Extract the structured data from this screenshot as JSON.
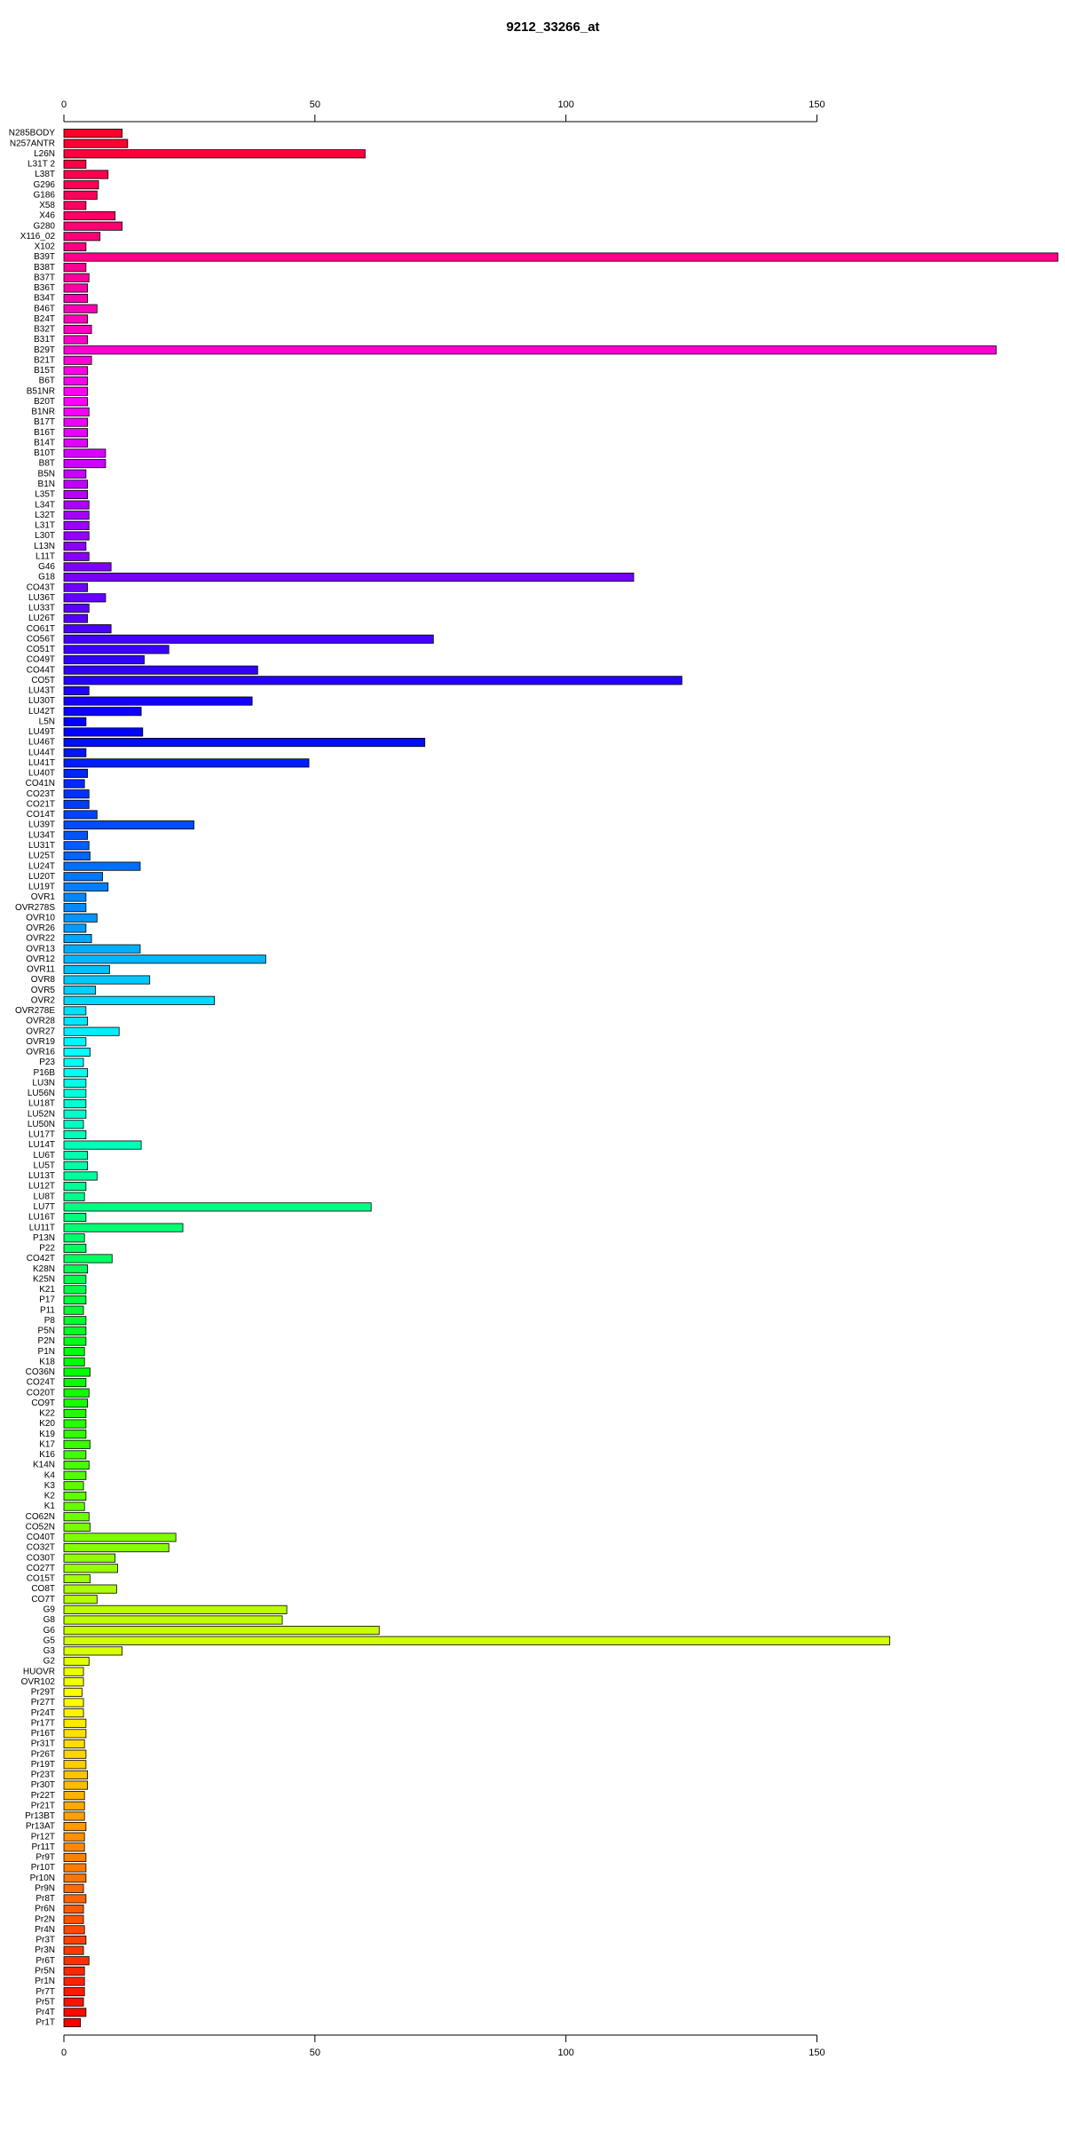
{
  "chart_data": {
    "type": "bar",
    "orientation": "horizontal",
    "title": "9212_33266_at",
    "categories": [
      "N285BODY",
      "N257ANTR",
      "L26N",
      "L31T 2",
      "L38T",
      "G296",
      "G186",
      "X58",
      "X46",
      "G280",
      "X116_02",
      "X102",
      "B39T",
      "B38T",
      "B37T",
      "B36T",
      "B34T",
      "B46T",
      "B24T",
      "B32T",
      "B31T",
      "B29T",
      "B21T",
      "B15T",
      "B6T",
      "B51NR",
      "B20T",
      "B1NR",
      "B17T",
      "B16T",
      "B14T",
      "B10T",
      "B8T",
      "B5N",
      "B1N",
      "L35T",
      "L34T",
      "L32T",
      "L31T",
      "L30T",
      "L13N",
      "L11T",
      "G46",
      "G18",
      "CO43T",
      "LU36T",
      "LU33T",
      "LU26T",
      "CO61T",
      "CO56T",
      "CO51T",
      "CO49T",
      "CO44T",
      "CO5T",
      "LU43T",
      "LU30T",
      "LU42T",
      "L5N",
      "LU49T",
      "LU46T",
      "LU44T",
      "LU41T",
      "LU40T",
      "CO41N",
      "CO23T",
      "CO21T",
      "CO14T",
      "LU39T",
      "LU34T",
      "LU31T",
      "LU25T",
      "LU24T",
      "LU20T",
      "LU19T",
      "OVR1",
      "OVR278S",
      "OVR10",
      "OVR26",
      "OVR22",
      "OVR13",
      "OVR12",
      "OVR11",
      "OVR8",
      "OVR5",
      "OVR2",
      "OVR278E",
      "OVR28",
      "OVR27",
      "OVR19",
      "OVR16",
      "P23",
      "P16B",
      "LU3N",
      "LU56N",
      "LU18T",
      "LU52N",
      "LU50N",
      "LU17T",
      "LU14T",
      "LU6T",
      "LU5T",
      "LU13T",
      "LU12T",
      "LU8T",
      "LU7T",
      "LU16T",
      "LU11T",
      "P13N",
      "P22",
      "CO42T",
      "K28N",
      "K25N",
      "K21",
      "P17",
      "P11",
      "P8",
      "P5N",
      "P2N",
      "P1N",
      "K18",
      "CO36N",
      "CO24T",
      "CO20T",
      "CO9T",
      "K22",
      "K20",
      "K19",
      "K17",
      "K16",
      "K14N",
      "K4",
      "K3",
      "K2",
      "K1",
      "CO62N",
      "CO52N",
      "CO40T",
      "CO32T",
      "CO30T",
      "CO27T",
      "CO15T",
      "CO8T",
      "CO7T",
      "G9",
      "G8",
      "G6",
      "G5",
      "G3",
      "G2",
      "HUOVR",
      "OVR102",
      "Pr29T",
      "Pr27T",
      "Pr24T",
      "Pr17T",
      "Pr16T",
      "Pr31T",
      "Pr26T",
      "Pr19T",
      "Pr23T",
      "Pr30T",
      "Pr22T",
      "Pr21T",
      "Pr13BT",
      "Pr13AT",
      "Pr12T",
      "Pr11T",
      "Pr9T",
      "Pr10T",
      "Pr10N",
      "Pr9N",
      "Pr8T",
      "Pr6N",
      "Pr2N",
      "Pr4N",
      "Pr3T",
      "Pr3N",
      "Pr6T",
      "Pr5N",
      "Pr1N",
      "Pr7T",
      "Pr5T",
      "Pr4T",
      "Pr1T"
    ],
    "values": [
      11.6,
      12.7,
      60,
      4.4,
      8.8,
      6.9,
      6.6,
      4.4,
      10.2,
      11.6,
      7.2,
      4.4,
      198,
      4.4,
      5,
      4.7,
      4.7,
      6.6,
      4.7,
      5.5,
      4.7,
      185.7,
      5.5,
      4.7,
      4.7,
      4.7,
      4.7,
      5,
      4.7,
      4.7,
      4.7,
      8.3,
      8.3,
      4.4,
      4.7,
      4.7,
      5,
      5,
      5,
      5,
      4.4,
      5,
      9.4,
      113.5,
      4.7,
      8.3,
      5,
      4.7,
      9.4,
      73.6,
      20.9,
      16,
      38.6,
      123.1,
      5,
      37.5,
      15.4,
      4.4,
      15.7,
      71.9,
      4.4,
      48.8,
      4.7,
      4.1,
      5,
      5,
      6.6,
      25.9,
      4.7,
      5,
      5.2,
      15.2,
      7.7,
      8.8,
      4.4,
      4.4,
      6.6,
      4.4,
      5.5,
      15.2,
      40.2,
      9.1,
      17.1,
      6.3,
      30,
      4.4,
      4.7,
      11,
      4.4,
      5.2,
      3.9,
      4.7,
      4.4,
      4.4,
      4.4,
      4.4,
      3.9,
      4.4,
      15.4,
      4.7,
      4.7,
      6.6,
      4.4,
      4.1,
      61.2,
      4.4,
      23.7,
      4.1,
      4.4,
      9.6,
      4.7,
      4.4,
      4.4,
      4.4,
      3.9,
      4.4,
      4.4,
      4.4,
      4.1,
      4.1,
      5.2,
      4.4,
      5,
      4.7,
      4.4,
      4.4,
      4.4,
      5.2,
      4.4,
      5,
      4.4,
      3.9,
      4.4,
      4.1,
      5,
      5.2,
      22.3,
      20.9,
      10.2,
      10.7,
      5.2,
      10.5,
      6.6,
      44.4,
      43.5,
      62.8,
      164.5,
      11.6,
      5,
      3.9,
      3.9,
      3.6,
      3.9,
      3.9,
      4.4,
      4.4,
      4.1,
      4.4,
      4.4,
      4.7,
      4.7,
      4.1,
      4.1,
      4.1,
      4.4,
      4.1,
      4.1,
      4.4,
      4.4,
      4.4,
      3.9,
      4.4,
      3.9,
      3.9,
      4.1,
      4.4,
      3.9,
      5,
      4.1,
      4.1,
      4.1,
      3.9,
      4.4,
      3.3
    ],
    "colors": [
      "hsl(350,100%,50%)",
      "hsl(348,100%,50%)",
      "hsl(346,100%,50%)",
      "hsl(344,100%,50%)",
      "hsl(342,100%,50%)",
      "hsl(340,100%,50%)",
      "hsl(339,100%,50%)",
      "hsl(337,100%,50%)",
      "hsl(335,100%,50%)",
      "hsl(333,100%,50%)",
      "hsl(331,100%,50%)",
      "hsl(329,100%,50%)",
      "hsl(327,100%,50%)",
      "hsl(325,100%,50%)",
      "hsl(323,100%,50%)",
      "hsl(321,100%,50%)",
      "hsl(319,100%,50%)",
      "hsl(317,100%,50%)",
      "hsl(316,100%,50%)",
      "hsl(314,100%,50%)",
      "hsl(312,100%,50%)",
      "hsl(310,100%,50%)",
      "hsl(308,100%,50%)",
      "hsl(306,100%,50%)",
      "hsl(304,100%,50%)",
      "hsl(302,100%,50%)",
      "hsl(300,100%,50%)",
      "hsl(298,100%,50%)",
      "hsl(296,100%,50%)",
      "hsl(295,100%,50%)",
      "hsl(293,100%,50%)",
      "hsl(291,100%,50%)",
      "hsl(289,100%,50%)",
      "hsl(287,100%,50%)",
      "hsl(285,100%,50%)",
      "hsl(283,100%,50%)",
      "hsl(281,100%,50%)",
      "hsl(279,100%,50%)",
      "hsl(277,100%,50%)",
      "hsl(275,100%,50%)",
      "hsl(273,100%,50%)",
      "hsl(272,100%,50%)",
      "hsl(270,100%,50%)",
      "hsl(268,100%,50%)",
      "hsl(266,100%,50%)",
      "hsl(264,100%,50%)",
      "hsl(262,100%,50%)",
      "hsl(260,100%,50%)",
      "hsl(258,100%,50%)",
      "hsl(256,100%,50%)",
      "hsl(254,100%,50%)",
      "hsl(252,100%,50%)",
      "hsl(251,100%,50%)",
      "hsl(249,100%,50%)",
      "hsl(247,100%,50%)",
      "hsl(245,100%,50%)",
      "hsl(243,100%,50%)",
      "hsl(241,100%,50%)",
      "hsl(239,100%,50%)",
      "hsl(237,100%,50%)",
      "hsl(235,100%,50%)",
      "hsl(233,100%,50%)",
      "hsl(231,100%,50%)",
      "hsl(230,100%,50%)",
      "hsl(228,100%,50%)",
      "hsl(226,100%,50%)",
      "hsl(224,100%,50%)",
      "hsl(222,100%,50%)",
      "hsl(220,100%,50%)",
      "hsl(218,100%,50%)",
      "hsl(216,100%,50%)",
      "hsl(214,100%,50%)",
      "hsl(212,100%,50%)",
      "hsl(210,100%,50%)",
      "hsl(208,100%,50%)",
      "hsl(207,100%,50%)",
      "hsl(205,100%,50%)",
      "hsl(203,100%,50%)",
      "hsl(201,100%,50%)",
      "hsl(199,100%,50%)",
      "hsl(197,100%,50%)",
      "hsl(195,100%,50%)",
      "hsl(193,100%,50%)",
      "hsl(191,100%,50%)",
      "hsl(189,100%,50%)",
      "hsl(187,100%,50%)",
      "hsl(186,100%,50%)",
      "hsl(184,100%,50%)",
      "hsl(182,100%,50%)",
      "hsl(180,100%,50%)",
      "hsl(178,100%,50%)",
      "hsl(176,100%,50%)",
      "hsl(174,100%,50%)",
      "hsl(172,100%,50%)",
      "hsl(170,100%,50%)",
      "hsl(168,100%,50%)",
      "hsl(166,100%,50%)",
      "hsl(164,100%,50%)",
      "hsl(163,100%,50%)",
      "hsl(161,100%,50%)",
      "hsl(159,100%,50%)",
      "hsl(157,100%,50%)",
      "hsl(155,100%,50%)",
      "hsl(153,100%,50%)",
      "hsl(151,100%,50%)",
      "hsl(149,100%,50%)",
      "hsl(147,100%,50%)",
      "hsl(145,100%,50%)",
      "hsl(143,100%,50%)",
      "hsl(142,100%,50%)",
      "hsl(140,100%,50%)",
      "hsl(138,100%,50%)",
      "hsl(136,100%,50%)",
      "hsl(134,100%,50%)",
      "hsl(132,100%,50%)",
      "hsl(130,100%,50%)",
      "hsl(128,100%,50%)",
      "hsl(126,100%,50%)",
      "hsl(124,100%,50%)",
      "hsl(122,100%,50%)",
      "hsl(120,100%,50%)",
      "hsl(119,100%,50%)",
      "hsl(117,100%,50%)",
      "hsl(115,100%,50%)",
      "hsl(113,100%,50%)",
      "hsl(111,100%,50%)",
      "hsl(109,100%,50%)",
      "hsl(107,100%,50%)",
      "hsl(105,100%,50%)",
      "hsl(103,100%,50%)",
      "hsl(101,100%,50%)",
      "hsl(99,100%,50%)",
      "hsl(98,100%,50%)",
      "hsl(96,100%,50%)",
      "hsl(94,100%,50%)",
      "hsl(92,100%,50%)",
      "hsl(90,100%,50%)",
      "hsl(88,100%,50%)",
      "hsl(86,100%,50%)",
      "hsl(84,100%,50%)",
      "hsl(82,100%,50%)",
      "hsl(80,100%,50%)",
      "hsl(78,100%,50%)",
      "hsl(76,100%,50%)",
      "hsl(75,100%,50%)",
      "hsl(73,100%,50%)",
      "hsl(71,100%,50%)",
      "hsl(69,100%,50%)",
      "hsl(67,100%,50%)",
      "hsl(65,100%,50%)",
      "hsl(63,100%,50%)",
      "hsl(61,100%,50%)",
      "hsl(59,100%,50%)",
      "hsl(57,100%,50%)",
      "hsl(55,100%,50%)",
      "hsl(53,100%,50%)",
      "hsl(52,100%,50%)",
      "hsl(50,100%,50%)",
      "hsl(48,100%,50%)",
      "hsl(46,100%,50%)",
      "hsl(44,100%,50%)",
      "hsl(42,100%,50%)",
      "hsl(40,100%,50%)",
      "hsl(38,100%,50%)",
      "hsl(36,100%,50%)",
      "hsl(34,100%,50%)",
      "hsl(32,100%,50%)",
      "hsl(30,100%,50%)",
      "hsl(29,100%,50%)",
      "hsl(27,100%,50%)",
      "hsl(25,100%,50%)",
      "hsl(23,100%,50%)",
      "hsl(21,100%,50%)",
      "hsl(19,100%,50%)",
      "hsl(17,100%,50%)",
      "hsl(15,100%,50%)",
      "hsl(13,100%,50%)",
      "hsl(11,100%,50%)",
      "hsl(9,100%,50%)",
      "hsl(8,100%,50%)",
      "hsl(6,100%,50%)",
      "hsl(4,100%,50%)",
      "hsl(2,100%,50%)",
      "hsl(0,100%,50%)"
    ],
    "xlim": [
      0,
      198
    ],
    "xticks": [
      0,
      50,
      100,
      150
    ],
    "grid": false
  }
}
